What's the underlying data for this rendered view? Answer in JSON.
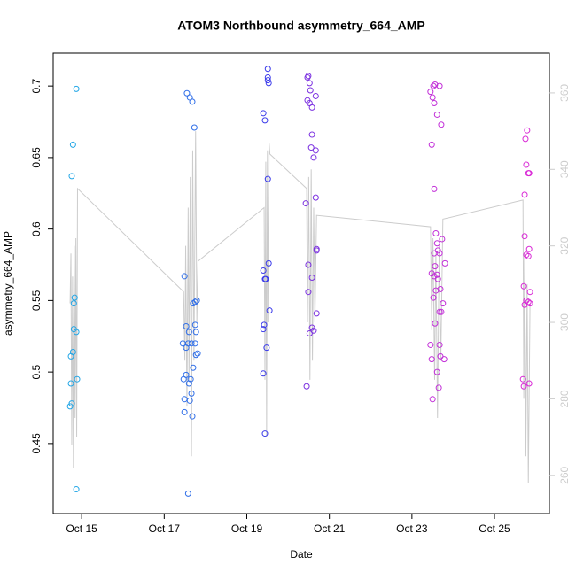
{
  "chart_data": {
    "type": "scatter",
    "title": "ATOM3 Northbound asymmetry_664_AMP",
    "x_label": "Date",
    "y_label": "asymmetry_664_AMP",
    "xlim": [
      14.31,
      26.33
    ],
    "xticks": [
      {
        "value": 15,
        "label": "Oct 15"
      },
      {
        "value": 17,
        "label": "Oct 17"
      },
      {
        "value": 19,
        "label": "Oct 19"
      },
      {
        "value": 21,
        "label": "Oct 21"
      },
      {
        "value": 23,
        "label": "Oct 23"
      },
      {
        "value": 25,
        "label": "Oct 25"
      }
    ],
    "ylim": [
      0.401,
      0.723
    ],
    "yticks": [
      0.45,
      0.5,
      0.55,
      0.6,
      0.65,
      0.7
    ],
    "y2lim": [
      250,
      370.4
    ],
    "y2ticks": [
      260,
      280,
      300,
      320,
      340,
      360
    ],
    "y2_color": "#cccccc",
    "series": [
      {
        "color": "#22a6e6",
        "x": [
          14.87,
          14.79,
          14.76,
          14.83,
          14.81,
          14.81,
          14.87,
          14.79,
          14.74,
          14.89,
          14.74,
          14.76,
          14.72,
          14.87
        ],
        "values": [
          0.698,
          0.659,
          0.637,
          0.552,
          0.548,
          0.53,
          0.528,
          0.514,
          0.511,
          0.495,
          0.492,
          0.478,
          0.476,
          0.418
        ]
      },
      {
        "color": "#2f6ee8",
        "x": [
          17.55,
          17.62,
          17.68,
          17.73,
          17.49,
          17.75,
          17.7,
          17.79,
          17.53,
          17.75,
          17.6,
          17.77,
          17.45,
          17.58,
          17.66,
          17.75,
          17.53,
          17.81,
          17.77,
          17.7,
          17.47,
          17.53,
          17.64,
          17.6,
          17.66,
          17.49,
          17.62,
          17.49,
          17.68,
          17.58
        ],
        "values": [
          0.695,
          0.692,
          0.689,
          0.671,
          0.567,
          0.549,
          0.548,
          0.55,
          0.532,
          0.533,
          0.528,
          0.528,
          0.52,
          0.52,
          0.52,
          0.52,
          0.517,
          0.513,
          0.512,
          0.503,
          0.495,
          0.498,
          0.495,
          0.492,
          0.485,
          0.481,
          0.48,
          0.472,
          0.469,
          0.415
        ]
      },
      {
        "color": "#3a3aea",
        "x": [
          19.51,
          19.51,
          19.51,
          19.53,
          19.4,
          19.44,
          19.51,
          19.53,
          19.4,
          19.46,
          19.44,
          19.55,
          19.42,
          19.4,
          19.48,
          19.4,
          19.44
        ],
        "values": [
          0.712,
          0.706,
          0.704,
          0.702,
          0.681,
          0.676,
          0.635,
          0.576,
          0.571,
          0.565,
          0.565,
          0.543,
          0.533,
          0.53,
          0.517,
          0.499,
          0.457
        ]
      },
      {
        "color": "#7a2fe0",
        "x": [
          20.49,
          20.47,
          20.52,
          20.54,
          20.67,
          20.47,
          20.52,
          20.58,
          20.58,
          20.56,
          20.67,
          20.62,
          20.67,
          20.43,
          20.69,
          20.69,
          20.49,
          20.58,
          20.49,
          20.69,
          20.58,
          20.62,
          20.52,
          20.45
        ],
        "values": [
          0.707,
          0.706,
          0.702,
          0.697,
          0.693,
          0.69,
          0.688,
          0.685,
          0.666,
          0.657,
          0.655,
          0.65,
          0.622,
          0.618,
          0.586,
          0.585,
          0.575,
          0.566,
          0.556,
          0.541,
          0.531,
          0.529,
          0.527,
          0.49
        ]
      },
      {
        "color": "#c22fd8",
        "x": [
          23.52,
          23.56,
          23.67,
          23.45,
          23.5,
          23.54,
          23.61,
          23.71,
          23.48,
          23.54,
          23.58,
          23.73,
          23.61,
          23.63,
          23.67,
          23.54,
          23.8,
          23.56,
          23.61,
          23.54,
          23.63,
          23.48,
          23.58,
          23.69,
          23.52,
          23.75,
          23.71,
          23.67,
          23.56,
          23.45,
          23.67,
          23.69,
          23.78,
          23.48,
          23.61,
          23.65,
          23.5
        ],
        "values": [
          0.7,
          0.701,
          0.7,
          0.696,
          0.692,
          0.688,
          0.68,
          0.673,
          0.659,
          0.628,
          0.597,
          0.593,
          0.59,
          0.585,
          0.583,
          0.583,
          0.576,
          0.574,
          0.568,
          0.567,
          0.565,
          0.569,
          0.557,
          0.558,
          0.552,
          0.548,
          0.542,
          0.542,
          0.534,
          0.519,
          0.519,
          0.511,
          0.509,
          0.509,
          0.5,
          0.489,
          0.481
        ]
      },
      {
        "color": "#d92ad6",
        "x": [
          25.79,
          25.75,
          25.77,
          25.84,
          25.82,
          25.73,
          25.73,
          25.84,
          25.77,
          25.82,
          25.71,
          25.86,
          25.77,
          25.82,
          25.86,
          25.73,
          25.69,
          25.84,
          25.71
        ],
        "values": [
          0.669,
          0.663,
          0.645,
          0.639,
          0.639,
          0.624,
          0.595,
          0.586,
          0.582,
          0.581,
          0.56,
          0.556,
          0.55,
          0.549,
          0.548,
          0.547,
          0.495,
          0.492,
          0.49
        ]
      },
      {
        "type": "line",
        "axis": "y2",
        "color": "#cccccc",
        "x": [
          14.72,
          14.74,
          14.76,
          14.78,
          14.8,
          14.82,
          14.84,
          14.86,
          14.88,
          14.9,
          17.47,
          17.5,
          17.52,
          17.55,
          17.58,
          17.6,
          17.63,
          17.66,
          17.69,
          17.72,
          17.76,
          17.79,
          17.82,
          19.42,
          19.44,
          19.46,
          19.48,
          19.5,
          19.52,
          19.54,
          19.56,
          20.45,
          20.47,
          20.5,
          20.53,
          20.56,
          20.59,
          20.62,
          20.65,
          20.69,
          23.45,
          23.48,
          23.51,
          23.55,
          23.58,
          23.62,
          23.66,
          23.7,
          23.75,
          25.69,
          25.71,
          25.73,
          25.76,
          25.79,
          25.82,
          25.86
        ],
        "values": [
          305,
          318,
          268,
          312,
          262,
          320,
          275,
          322,
          270,
          335,
          308,
          290,
          320,
          278,
          330,
          285,
          338,
          265,
          345,
          290,
          350,
          300,
          316,
          330,
          285,
          342,
          270,
          345,
          300,
          347,
          344,
          335,
          300,
          338,
          285,
          340,
          290,
          330,
          300,
          328,
          325,
          298,
          322,
          285,
          318,
          275,
          320,
          290,
          327,
          332,
          280,
          318,
          265,
          310,
          258,
          305
        ]
      }
    ]
  }
}
